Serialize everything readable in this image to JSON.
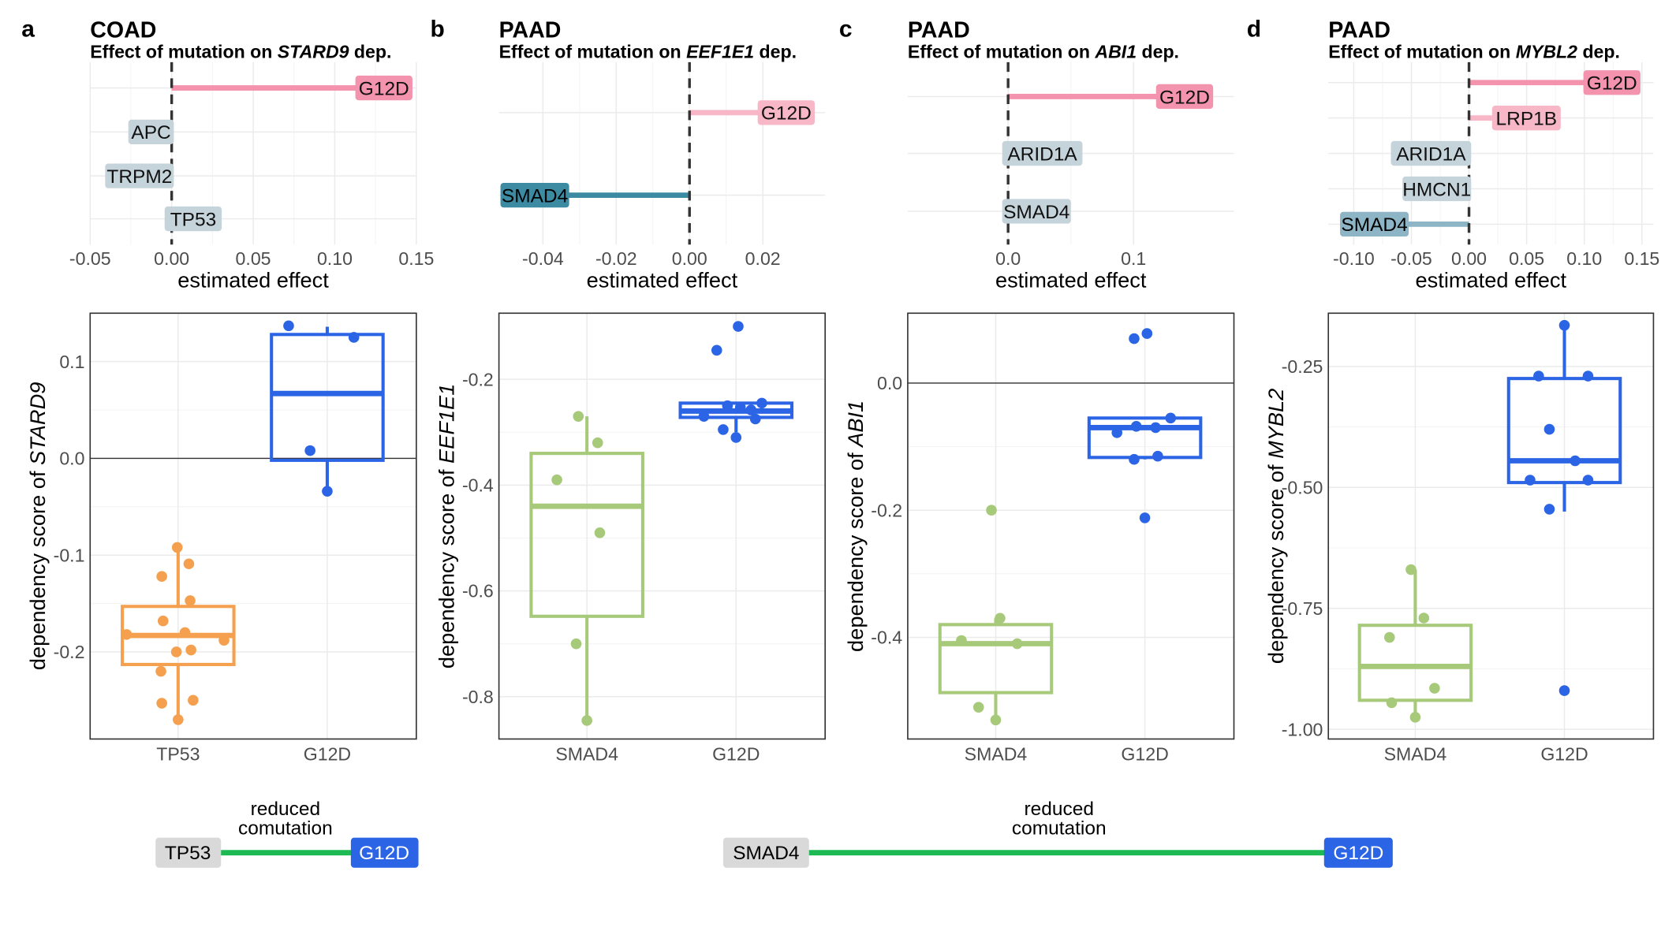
{
  "colors": {
    "orange": "#F4A04F",
    "blue": "#2C64E6",
    "green": "#A7C97A",
    "pink": "#F393AE",
    "pink_light": "#F7B7C6",
    "teal": "#3D8BA3",
    "steel_light": "#C5D3DA",
    "steel": "#8DB5C5",
    "comut_green": "#1DBA53",
    "gray_box": "#D9D9D9"
  },
  "panels": [
    {
      "letter": "a",
      "cancer": "COAD",
      "subtitle": {
        "prefix": "Effect of mutation on ",
        "gene": "STARD9",
        "suffix": " dep."
      }
    },
    {
      "letter": "b",
      "cancer": "PAAD",
      "subtitle": {
        "prefix": "Effect of mutation on ",
        "gene": "EEF1E1",
        "suffix": " dep."
      }
    },
    {
      "letter": "c",
      "cancer": "PAAD",
      "subtitle": {
        "prefix": "Effect of mutation on ",
        "gene": "ABI1",
        "suffix": " dep."
      }
    },
    {
      "letter": "d",
      "cancer": "PAAD",
      "subtitle": {
        "prefix": "Effect of mutation on ",
        "gene": "MYBL2",
        "suffix": " dep."
      }
    }
  ],
  "comutation": [
    {
      "label": "reduced comutation",
      "from": "TP53",
      "to": "G12D"
    },
    {
      "label": "reduced comutation",
      "from": "SMAD4",
      "to": "G12D"
    }
  ],
  "chart_data": [
    {
      "type": "bar",
      "orientation": "horizontal",
      "panel": "a",
      "xlabel": "estimated effect",
      "xlim": [
        -0.05,
        0.15
      ],
      "xticks": [
        -0.05,
        0.0,
        0.05,
        0.1,
        0.15
      ],
      "xtick_labels": [
        "-0.05",
        "0.00",
        "0.05",
        "0.10",
        "0.15"
      ],
      "reference_line": 0,
      "bars": [
        {
          "label": "G12D",
          "value": 0.145,
          "color": "pink"
        },
        {
          "label": "APC",
          "value": 0.0,
          "color": "steel_light"
        },
        {
          "label": "TRPM2",
          "value": 0.0,
          "color": "steel_light"
        },
        {
          "label": "TP53",
          "value": -0.003,
          "color": "steel_light"
        }
      ]
    },
    {
      "type": "bar",
      "orientation": "horizontal",
      "panel": "b",
      "xlabel": "estimated effect",
      "xlim": [
        -0.052,
        0.037
      ],
      "xticks": [
        -0.04,
        -0.02,
        0.0,
        0.02
      ],
      "xtick_labels": [
        "-0.04",
        "-0.02",
        "0.00",
        "0.02"
      ],
      "reference_line": 0,
      "bars": [
        {
          "label": "G12D",
          "value": 0.033,
          "color": "pink_light"
        },
        {
          "label": "SMAD4",
          "value": -0.051,
          "color": "teal"
        }
      ]
    },
    {
      "type": "bar",
      "orientation": "horizontal",
      "panel": "c",
      "xlabel": "estimated effect",
      "xlim": [
        -0.08,
        0.18
      ],
      "xticks": [
        0.0,
        0.1
      ],
      "xtick_labels": [
        "0.0",
        "0.1"
      ],
      "reference_line": 0,
      "bars": [
        {
          "label": "G12D",
          "value": 0.16,
          "color": "pink"
        },
        {
          "label": "ARID1A",
          "value": -0.003,
          "color": "steel_light"
        },
        {
          "label": "SMAD4",
          "value": -0.003,
          "color": "steel_light"
        }
      ]
    },
    {
      "type": "bar",
      "orientation": "horizontal",
      "panel": "d",
      "xlabel": "estimated effect",
      "xlim": [
        -0.122,
        0.16
      ],
      "xticks": [
        -0.1,
        -0.05,
        0.0,
        0.05,
        0.1,
        0.15
      ],
      "xtick_labels": [
        "-0.10",
        "-0.05",
        "0.00",
        "0.05",
        "0.10",
        "0.15"
      ],
      "reference_line": 0,
      "bars": [
        {
          "label": "G12D",
          "value": 0.145,
          "color": "pink"
        },
        {
          "label": "LRP1B",
          "value": 0.02,
          "color": "pink_light"
        },
        {
          "label": "ARID1A",
          "value": 0.0,
          "color": "steel_light"
        },
        {
          "label": "HMCN1",
          "value": 0.0,
          "color": "steel_light"
        },
        {
          "label": "SMAD4",
          "value": -0.11,
          "color": "steel"
        }
      ]
    },
    {
      "type": "box",
      "panel": "a",
      "ylabel": {
        "prefix": "dependency score of ",
        "gene": "STARD9"
      },
      "ylim": [
        -0.29,
        0.15
      ],
      "yticks": [
        0.1,
        0.0,
        -0.1,
        -0.2
      ],
      "ytick_labels": [
        "0.1",
        "0.0",
        "-0.1",
        "-0.2"
      ],
      "reference_line": 0,
      "groups": [
        {
          "label": "TP53",
          "color": "orange",
          "box": {
            "whisker_low": -0.27,
            "q1": -0.213,
            "median": -0.183,
            "q3": -0.153,
            "whisker_high": -0.092
          },
          "points": [
            {
              "offset": -0.02,
              "y": -0.092
            },
            {
              "offset": 0.25,
              "y": -0.109
            },
            {
              "offset": -0.38,
              "y": -0.122
            },
            {
              "offset": 0.28,
              "y": -0.147
            },
            {
              "offset": -0.35,
              "y": -0.168
            },
            {
              "offset": 0.16,
              "y": -0.18
            },
            {
              "offset": -1.2,
              "y": -0.182
            },
            {
              "offset": 1.07,
              "y": -0.188
            },
            {
              "offset": 0.3,
              "y": -0.198
            },
            {
              "offset": -0.04,
              "y": -0.2
            },
            {
              "offset": -0.4,
              "y": -0.22
            },
            {
              "offset": 0.35,
              "y": -0.25
            },
            {
              "offset": -0.38,
              "y": -0.253
            },
            {
              "offset": 0.0,
              "y": -0.27
            }
          ]
        },
        {
          "label": "G12D",
          "color": "blue",
          "box": {
            "whisker_low": -0.034,
            "q1": -0.002,
            "median": 0.067,
            "q3": 0.128,
            "whisker_high": 0.136
          },
          "points": [
            {
              "offset": -0.9,
              "y": 0.137
            },
            {
              "offset": 0.62,
              "y": 0.125
            },
            {
              "offset": -0.4,
              "y": 0.008
            },
            {
              "offset": 0.0,
              "y": -0.034
            }
          ]
        }
      ]
    },
    {
      "type": "box",
      "panel": "b",
      "ylabel": {
        "prefix": "dependency score of ",
        "gene": "EEF1E1"
      },
      "ylim": [
        -0.88,
        -0.075
      ],
      "yticks": [
        -0.2,
        -0.4,
        -0.6,
        -0.8
      ],
      "ytick_labels": [
        "-0.2",
        "-0.4",
        "-0.6",
        "-0.8"
      ],
      "groups": [
        {
          "label": "SMAD4",
          "color": "green",
          "box": {
            "whisker_low": -0.85,
            "q1": -0.648,
            "median": -0.44,
            "q3": -0.34,
            "whisker_high": -0.27
          },
          "points": [
            {
              "offset": -0.2,
              "y": -0.27
            },
            {
              "offset": 0.25,
              "y": -0.32
            },
            {
              "offset": -0.7,
              "y": -0.39
            },
            {
              "offset": 0.3,
              "y": -0.49
            },
            {
              "offset": -0.25,
              "y": -0.7
            },
            {
              "offset": 0.0,
              "y": -0.845
            }
          ]
        },
        {
          "label": "G12D",
          "color": "blue",
          "box": {
            "whisker_low": -0.3,
            "q1": -0.272,
            "median": -0.26,
            "q3": -0.245,
            "whisker_high": -0.245
          },
          "points": [
            {
              "offset": 0.05,
              "y": -0.1
            },
            {
              "offset": -0.45,
              "y": -0.145
            },
            {
              "offset": 0.6,
              "y": -0.245
            },
            {
              "offset": -0.2,
              "y": -0.25
            },
            {
              "offset": 0.1,
              "y": -0.253
            },
            {
              "offset": 0.35,
              "y": -0.258
            },
            {
              "offset": -0.75,
              "y": -0.27
            },
            {
              "offset": 0.45,
              "y": -0.275
            },
            {
              "offset": -0.3,
              "y": -0.295
            },
            {
              "offset": 0.0,
              "y": -0.31
            }
          ]
        }
      ]
    },
    {
      "type": "box",
      "panel": "c",
      "ylabel": {
        "prefix": "dependency score of ",
        "gene": "ABI1"
      },
      "ylim": [
        -0.56,
        0.11
      ],
      "yticks": [
        0.0,
        -0.2,
        -0.4
      ],
      "ytick_labels": [
        "0.0",
        "-0.2",
        "-0.4"
      ],
      "reference_line": 0,
      "groups": [
        {
          "label": "SMAD4",
          "color": "green",
          "box": {
            "whisker_low": -0.53,
            "q1": -0.487,
            "median": -0.41,
            "q3": -0.38,
            "whisker_high": -0.37
          },
          "points": [
            {
              "offset": -0.1,
              "y": -0.2
            },
            {
              "offset": 0.1,
              "y": -0.37
            },
            {
              "offset": -0.8,
              "y": -0.405
            },
            {
              "offset": 0.5,
              "y": -0.41
            },
            {
              "offset": -0.4,
              "y": -0.51
            },
            {
              "offset": 0.0,
              "y": -0.53
            }
          ]
        },
        {
          "label": "G12D",
          "color": "blue",
          "box": {
            "whisker_low": -0.12,
            "q1": -0.117,
            "median": -0.07,
            "q3": -0.055,
            "whisker_high": -0.055
          },
          "points": [
            {
              "offset": -0.25,
              "y": 0.07
            },
            {
              "offset": 0.05,
              "y": 0.078
            },
            {
              "offset": 0.6,
              "y": -0.055
            },
            {
              "offset": -0.2,
              "y": -0.068
            },
            {
              "offset": 0.25,
              "y": -0.07
            },
            {
              "offset": -0.65,
              "y": -0.078
            },
            {
              "offset": -0.25,
              "y": -0.12
            },
            {
              "offset": 0.3,
              "y": -0.115
            },
            {
              "offset": 0.0,
              "y": -0.212
            }
          ]
        }
      ]
    },
    {
      "type": "box",
      "panel": "d",
      "ylabel": {
        "prefix": "dependency score of ",
        "gene": "MYBL2"
      },
      "ylim": [
        -1.02,
        -0.14
      ],
      "yticks": [
        -0.25,
        -0.5,
        -0.75,
        -1.0
      ],
      "ytick_labels": [
        "-0.25",
        "-0.50",
        "-0.75",
        "-1.00"
      ],
      "groups": [
        {
          "label": "SMAD4",
          "color": "green",
          "box": {
            "whisker_low": -0.98,
            "q1": -0.94,
            "median": -0.87,
            "q3": -0.785,
            "whisker_high": -0.67
          },
          "points": [
            {
              "offset": -0.1,
              "y": -0.67
            },
            {
              "offset": 0.2,
              "y": -0.77
            },
            {
              "offset": -0.6,
              "y": -0.81
            },
            {
              "offset": 0.45,
              "y": -0.915
            },
            {
              "offset": -0.55,
              "y": -0.945
            },
            {
              "offset": 0.0,
              "y": -0.975
            }
          ]
        },
        {
          "label": "G12D",
          "color": "blue",
          "box": {
            "whisker_low": -0.55,
            "q1": -0.49,
            "median": -0.445,
            "q3": -0.275,
            "whisker_high": -0.165
          },
          "points": [
            {
              "offset": 0.0,
              "y": -0.165
            },
            {
              "offset": -0.6,
              "y": -0.27
            },
            {
              "offset": 0.55,
              "y": -0.27
            },
            {
              "offset": -0.35,
              "y": -0.38
            },
            {
              "offset": 0.25,
              "y": -0.445
            },
            {
              "offset": -0.8,
              "y": -0.485
            },
            {
              "offset": 0.55,
              "y": -0.485
            },
            {
              "offset": -0.35,
              "y": -0.545
            },
            {
              "offset": 0.0,
              "y": -0.92
            }
          ]
        }
      ]
    }
  ]
}
